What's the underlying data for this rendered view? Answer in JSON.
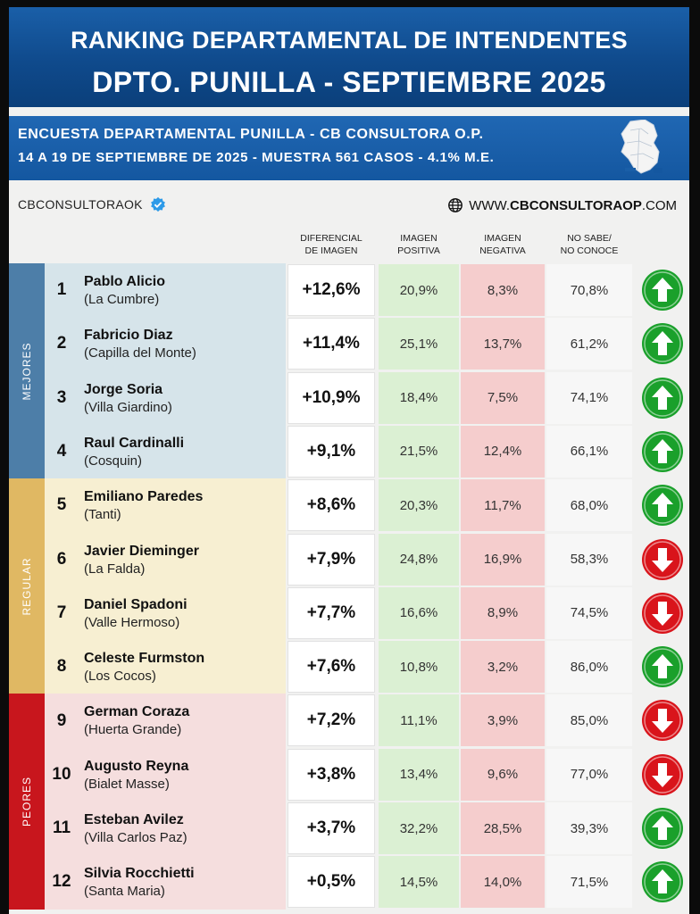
{
  "header": {
    "title_line1": "RANKING DEPARTAMENTAL DE INTENDENTES",
    "title_line2": "DPTO. PUNILLA - SEPTIEMBRE 2025"
  },
  "subheader": {
    "line1": "ENCUESTA DEPARTAMENTAL PUNILLA - CB CONSULTORA O.P.",
    "line2": "14 A 19 DE SEPTIEMBRE  DE 2025 - MUESTRA 561 CASOS - 4.1% M.E."
  },
  "brand": {
    "handle": "CBCONSULTORAOK",
    "website_prefix": "WWW.",
    "website_domain": "CBCONSULTORAOP",
    "website_suffix": ".COM"
  },
  "columns": {
    "diferencial": [
      "DIFERENCIAL",
      "DE IMAGEN"
    ],
    "positiva": [
      "IMAGEN",
      "POSITIVA"
    ],
    "negativa": [
      "IMAGEN",
      "NEGATIVA"
    ],
    "nosabe": [
      "NO SABE/",
      "NO CONOCE"
    ]
  },
  "sections": [
    {
      "label": "MEJORES",
      "color": "#4d7ea8",
      "bg": "#d6e4ea"
    },
    {
      "label": "REGULAR",
      "color": "#e0b863",
      "bg": "#f7efd2"
    },
    {
      "label": "PEORES",
      "color": "#c8161d",
      "bg": "#f5dede"
    }
  ],
  "colors": {
    "up": "#1aa02b",
    "down": "#d9141b"
  },
  "chart_data": {
    "type": "table",
    "title": "RANKING DEPARTAMENTAL DE INTENDENTES",
    "rows": [
      {
        "rank": "1",
        "name": "Pablo Alicio",
        "city": "(La Cumbre)",
        "diff": "+12,6%",
        "pos": "20,9%",
        "neg": "8,3%",
        "ns": "70,8%",
        "trend": "up",
        "section": 0
      },
      {
        "rank": "2",
        "name": "Fabricio Diaz",
        "city": "(Capilla del Monte)",
        "diff": "+11,4%",
        "pos": "25,1%",
        "neg": "13,7%",
        "ns": "61,2%",
        "trend": "up",
        "section": 0
      },
      {
        "rank": "3",
        "name": "Jorge Soria",
        "city": "(Villa Giardino)",
        "diff": "+10,9%",
        "pos": "18,4%",
        "neg": "7,5%",
        "ns": "74,1%",
        "trend": "up",
        "section": 0
      },
      {
        "rank": "4",
        "name": "Raul Cardinalli",
        "city": "(Cosquin)",
        "diff": "+9,1%",
        "pos": "21,5%",
        "neg": "12,4%",
        "ns": "66,1%",
        "trend": "up",
        "section": 0
      },
      {
        "rank": "5",
        "name": "Emiliano Paredes",
        "city": "(Tanti)",
        "diff": "+8,6%",
        "pos": "20,3%",
        "neg": "11,7%",
        "ns": "68,0%",
        "trend": "up",
        "section": 1
      },
      {
        "rank": "6",
        "name": "Javier Dieminger",
        "city": "(La Falda)",
        "diff": "+7,9%",
        "pos": "24,8%",
        "neg": "16,9%",
        "ns": "58,3%",
        "trend": "down",
        "section": 1
      },
      {
        "rank": "7",
        "name": "Daniel Spadoni",
        "city": "(Valle Hermoso)",
        "diff": "+7,7%",
        "pos": "16,6%",
        "neg": "8,9%",
        "ns": "74,5%",
        "trend": "down",
        "section": 1
      },
      {
        "rank": "8",
        "name": "Celeste Furmston",
        "city": "(Los Cocos)",
        "diff": "+7,6%",
        "pos": "10,8%",
        "neg": "3,2%",
        "ns": "86,0%",
        "trend": "up",
        "section": 1
      },
      {
        "rank": "9",
        "name": "German Coraza",
        "city": "(Huerta Grande)",
        "diff": "+7,2%",
        "pos": "11,1%",
        "neg": "3,9%",
        "ns": "85,0%",
        "trend": "down",
        "section": 2
      },
      {
        "rank": "10",
        "name": "Augusto Reyna",
        "city": "(Bialet Masse)",
        "diff": "+3,8%",
        "pos": "13,4%",
        "neg": "9,6%",
        "ns": "77,0%",
        "trend": "down",
        "section": 2
      },
      {
        "rank": "11",
        "name": "Esteban Avilez",
        "city": "(Villa Carlos Paz)",
        "diff": "+3,7%",
        "pos": "32,2%",
        "neg": "28,5%",
        "ns": "39,3%",
        "trend": "up",
        "section": 2
      },
      {
        "rank": "12",
        "name": "Silvia Rocchietti",
        "city": "(Santa Maria)",
        "diff": "+0,5%",
        "pos": "14,5%",
        "neg": "14,0%",
        "ns": "71,5%",
        "trend": "up",
        "section": 2
      }
    ]
  }
}
